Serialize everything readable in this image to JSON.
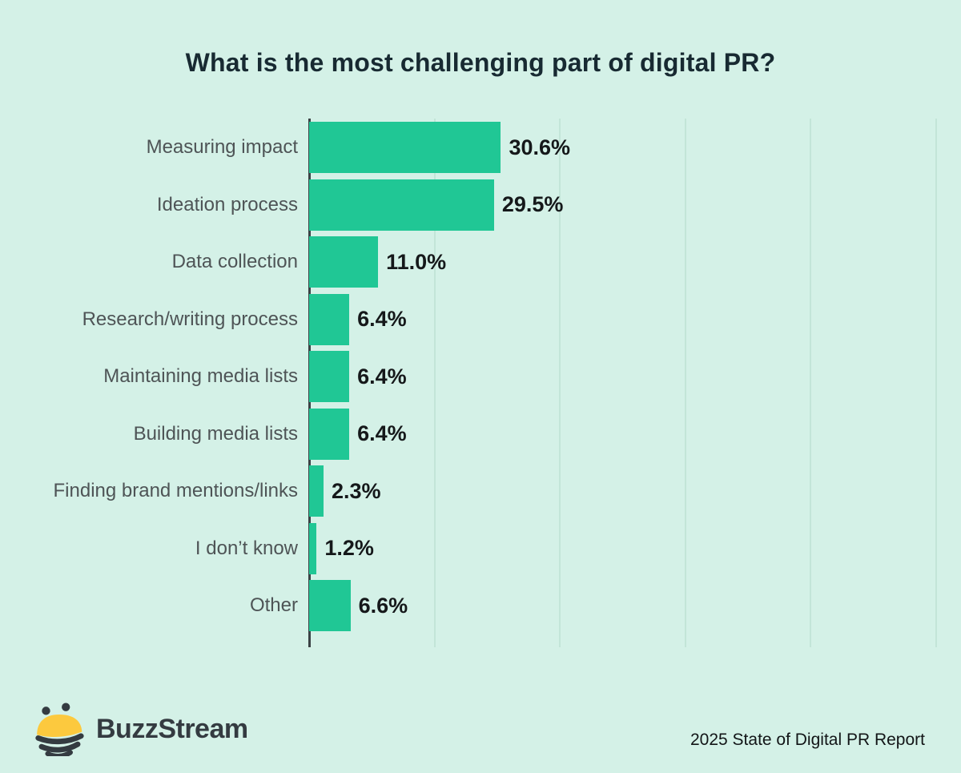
{
  "title": "What is the most challenging part of digital PR?",
  "footer": {
    "brand": "BuzzStream",
    "report": "2025 State of Digital PR Report"
  },
  "colors": {
    "background": "#d4f1e7",
    "bar": "#20c795",
    "gridline": "#c3e5d8",
    "axis": "#3b4245",
    "title_text": "#182a32",
    "category_text": "#4e5456",
    "value_text": "#15181a",
    "logo_dark": "#343b41",
    "bee_yellow": "#fcc93e"
  },
  "chart_data": {
    "type": "bar",
    "orientation": "horizontal",
    "title": "What is the most challenging part of digital PR?",
    "xlabel": "",
    "ylabel": "",
    "categories": [
      "Measuring impact",
      "Ideation process",
      "Data collection",
      "Research/writing process",
      "Maintaining media lists",
      "Building media lists",
      "Finding brand mentions/links",
      "I don’t know",
      "Other"
    ],
    "values": [
      30.6,
      29.5,
      11.0,
      6.4,
      6.4,
      6.4,
      2.3,
      1.2,
      6.6
    ],
    "value_labels": [
      "30.6%",
      "29.5%",
      "11.0%",
      "6.4%",
      "6.4%",
      "6.4%",
      "2.3%",
      "1.2%",
      "6.6%"
    ],
    "xlim": [
      0,
      100
    ],
    "gridlines_percent": [
      20,
      40,
      60,
      80,
      100
    ],
    "grid": "vertical-only",
    "legend": "none",
    "bar_color": "#20c795",
    "background_color": "#d4f1e7"
  }
}
